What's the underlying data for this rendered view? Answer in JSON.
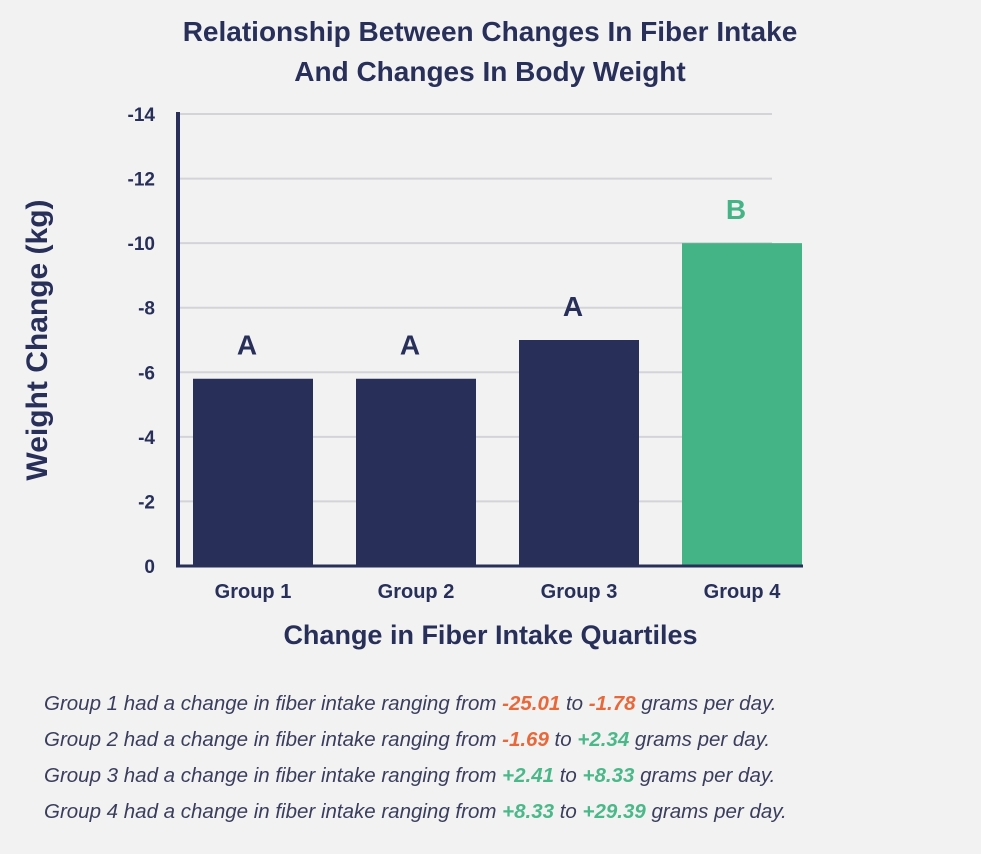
{
  "chart_data": {
    "type": "bar",
    "title_lines": [
      "Relationship Between Changes In Fiber Intake",
      "And Changes In Body Weight"
    ],
    "xlabel": "Change in Fiber Intake Quartiles",
    "ylabel": "Weight Change (kg)",
    "categories": [
      "Group 1",
      "Group 2",
      "Group 3",
      "Group 4"
    ],
    "values": [
      -5.8,
      -5.8,
      -7.0,
      -10.0
    ],
    "bar_colors": [
      "#28305a",
      "#28305a",
      "#28305a",
      "#44b386"
    ],
    "annotations": [
      {
        "text": "A",
        "color": "#28305a"
      },
      {
        "text": "A",
        "color": "#28305a"
      },
      {
        "text": "A",
        "color": "#28305a"
      },
      {
        "text": "B",
        "color": "#44b386"
      }
    ],
    "ylim": [
      0,
      -14
    ],
    "y_ticks": [
      0,
      -2,
      -4,
      -6,
      -8,
      -10,
      -12,
      -14
    ],
    "y_tick_labels": [
      "0",
      "-2",
      "-4",
      "-6",
      "-8",
      "-10",
      "-12",
      "-14"
    ],
    "grid": true
  },
  "notes": [
    {
      "prefix": "Group 1 had a change in fiber intake ranging from ",
      "from": "-25.01",
      "from_kind": "neg",
      "mid": " to ",
      "to": "-1.78",
      "to_kind": "neg",
      "suffix": " grams per day."
    },
    {
      "prefix": "Group 2 had a change in fiber intake ranging from ",
      "from": "-1.69",
      "from_kind": "neg",
      "mid": " to ",
      "to": "+2.34",
      "to_kind": "pos",
      "suffix": " grams per day."
    },
    {
      "prefix": "Group 3 had a change in fiber intake ranging from ",
      "from": "+2.41",
      "from_kind": "pos",
      "mid": " to ",
      "to": "+8.33",
      "to_kind": "pos",
      "suffix": " grams per day."
    },
    {
      "prefix": "Group 4 had a change in fiber intake ranging from ",
      "from": "+8.33",
      "from_kind": "pos",
      "mid": " to ",
      "to": "+29.39",
      "to_kind": "pos",
      "suffix": " grams per day."
    }
  ]
}
